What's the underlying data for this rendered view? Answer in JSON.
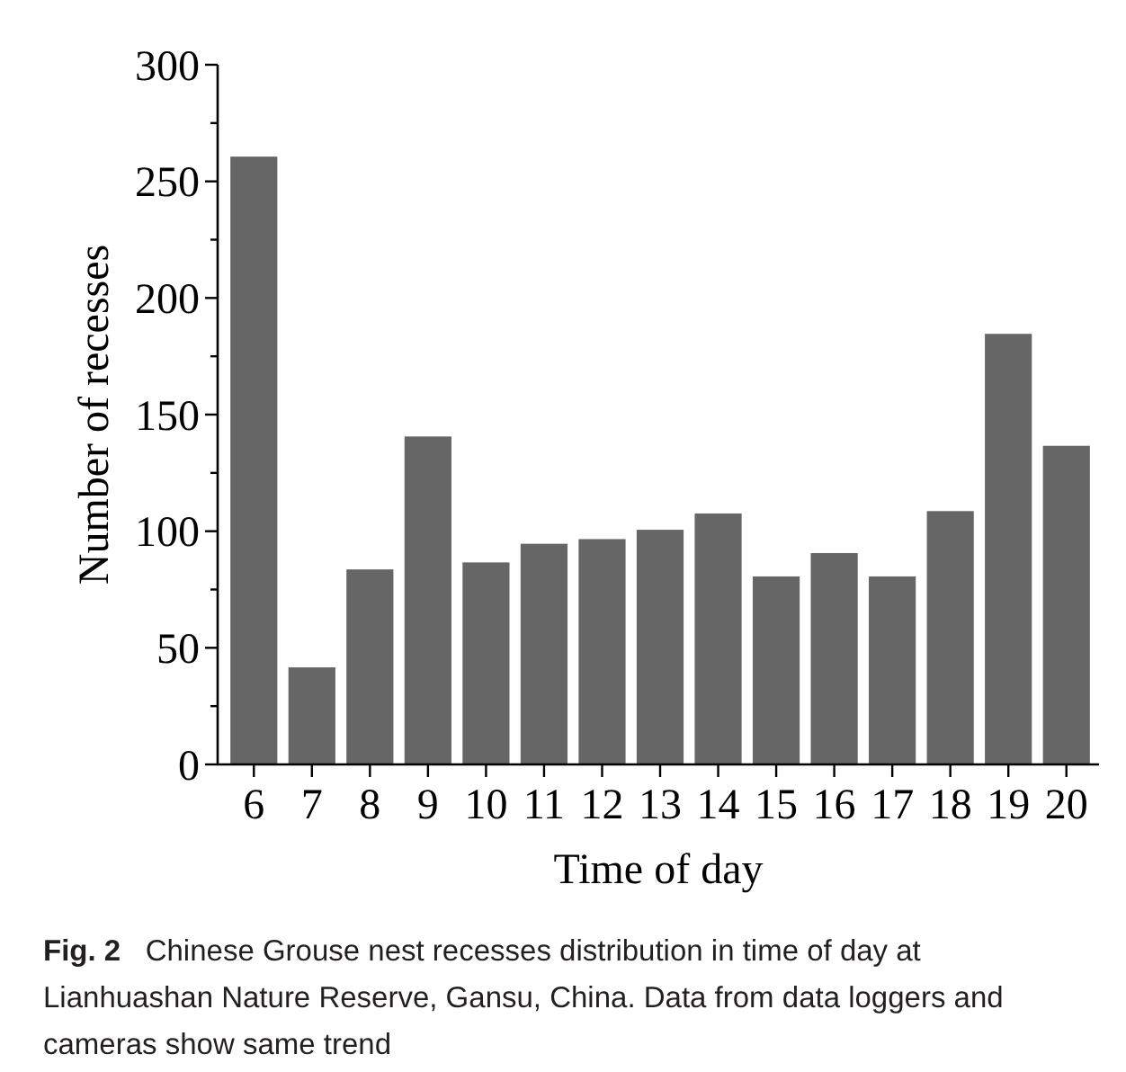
{
  "chart_data": {
    "type": "bar",
    "xlabel": "Time of day",
    "ylabel": "Number of recesses",
    "categories": [
      "6",
      "7",
      "8",
      "9",
      "10",
      "11",
      "12",
      "13",
      "14",
      "15",
      "16",
      "17",
      "18",
      "19",
      "20"
    ],
    "values": [
      261,
      42,
      84,
      141,
      87,
      95,
      97,
      101,
      108,
      81,
      91,
      81,
      109,
      185,
      137
    ],
    "color": "#666666",
    "ylim": [
      0,
      300
    ],
    "yticks": [
      0,
      {
        "value": 25,
        "label": null
      },
      50,
      {
        "value": 75,
        "label": null
      },
      100,
      {
        "value": 125,
        "label": null
      },
      150,
      {
        "value": 175,
        "label": null
      },
      200,
      {
        "value": 225,
        "label": null
      },
      250,
      {
        "value": 275,
        "label": null
      },
      300
    ],
    "grid": false,
    "annotations": [
      "Fig. 2",
      "Chinese Grouse nest recesses distribution in time of day at Lianhuashan Nature Reserve, Gansu, China. Data from data loggers and cameras show same trend"
    ]
  }
}
